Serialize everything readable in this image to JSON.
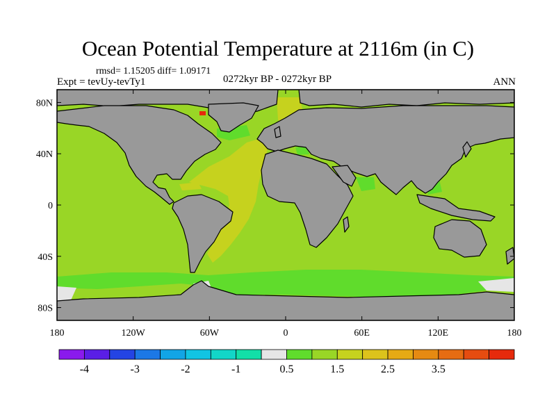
{
  "title": "Ocean Potential Temperature at 2116m (in C)",
  "stats": "rmsd= 1.15205 diff= 1.09171",
  "experiment": "Expt = tevUy-tevTy1",
  "period": "0272kyr BP - 0272kyr BP",
  "season": "ANN",
  "map": {
    "lon_range": [
      -180,
      180
    ],
    "lat_range": [
      -90,
      90
    ],
    "x_tick_labels": [
      {
        "lon": -180,
        "text": "180"
      },
      {
        "lon": -120,
        "text": "120W"
      },
      {
        "lon": -60,
        "text": "60W"
      },
      {
        "lon": 0,
        "text": "0"
      },
      {
        "lon": 60,
        "text": "60E"
      },
      {
        "lon": 120,
        "text": "120E"
      },
      {
        "lon": 180,
        "text": "180"
      }
    ],
    "y_tick_labels": [
      {
        "lat": 80,
        "text": "80N"
      },
      {
        "lat": 40,
        "text": "40N"
      },
      {
        "lat": 0,
        "text": "0"
      },
      {
        "lat": -40,
        "text": "40S"
      },
      {
        "lat": -80,
        "text": "80S"
      }
    ],
    "land_color": "#999999",
    "ocean_base_color": "#99d626"
  },
  "colorbar": {
    "colors": [
      "#8a1aed",
      "#5a1ee6",
      "#2444e4",
      "#1c78e6",
      "#12a5e6",
      "#11c4e3",
      "#12d6c8",
      "#12dfa8",
      "#e6e6e6",
      "#60dc2c",
      "#99d626",
      "#c6d21e",
      "#dcc31c",
      "#e6aa14",
      "#e68a12",
      "#e66c12",
      "#e64c10",
      "#e62a0c"
    ],
    "labels": [
      {
        "boundary": 1,
        "text": "-4"
      },
      {
        "boundary": 3,
        "text": "-3"
      },
      {
        "boundary": 5,
        "text": "-2"
      },
      {
        "boundary": 7,
        "text": "-1"
      },
      {
        "boundary": 9,
        "text": "0.5"
      },
      {
        "boundary": 11,
        "text": "1.5"
      },
      {
        "boundary": 13,
        "text": "2.5"
      },
      {
        "boundary": 15,
        "text": "3.5"
      }
    ]
  }
}
